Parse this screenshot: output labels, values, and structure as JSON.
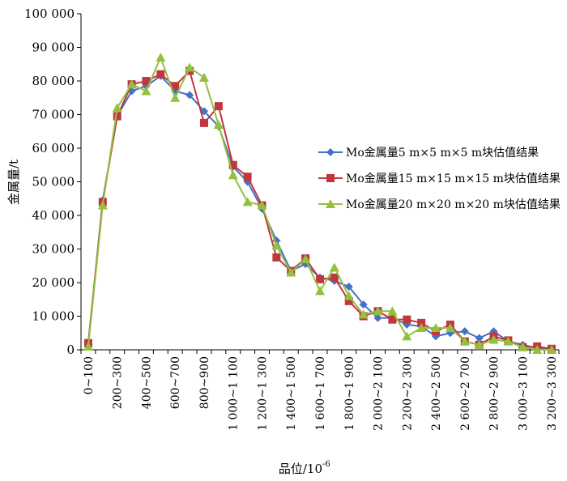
{
  "chart_data": {
    "type": "line",
    "title": "",
    "xlabel": "品位/10",
    "xlabel_superscript": "-6",
    "ylabel": "金属量/t",
    "ylim": [
      0,
      100000
    ],
    "ytick_values": [
      0,
      10000,
      20000,
      30000,
      40000,
      50000,
      60000,
      70000,
      80000,
      90000,
      100000
    ],
    "ytick_labels": [
      "0",
      "10 000",
      "20 000",
      "30 000",
      "40 000",
      "50 000",
      "60 000",
      "70 000",
      "80 000",
      "90 000",
      "100 000"
    ],
    "categories": [
      "0~100",
      "100~200",
      "200~300",
      "300~400",
      "400~500",
      "500~600",
      "600~700",
      "700~800",
      "800~900",
      "900~1 000",
      "1 000~1 100",
      "1 100~1 200",
      "1 200~1 300",
      "1 300~1 400",
      "1 400~1 500",
      "1 500~1 600",
      "1 600~1 700",
      "1 700~1 800",
      "1 800~1 900",
      "1 900~2 000",
      "2 000~2 100",
      "2 100~2 200",
      "2 200~2 300",
      "2 300~2 400",
      "2 400~2 500",
      "2 500~2 600",
      "2 600~2 700",
      "2 700~2 800",
      "2 800~2 900",
      "2 900~3 000",
      "3 000~3 100",
      "3 100~3 200",
      "3 200~3 300"
    ],
    "shown_tick_labels": [
      "0~100",
      "200~300",
      "400~500",
      "600~700",
      "800~900",
      "1 000~1 100",
      "1 200~1 300",
      "1 400~1 500",
      "1 600~1 700",
      "1 800~1 900",
      "2 000~2 100",
      "2 200~2 300",
      "2 400~2 500",
      "2 600~2 700",
      "2 800~2 900",
      "3 000~3 100",
      "3 200~3 300"
    ],
    "legend_position": "right",
    "series": [
      {
        "name": "Mo金属量5 m×5 m×5 m块估值结果",
        "color": "#4472C4",
        "marker": "diamond",
        "values": [
          1500,
          44500,
          69500,
          77000,
          78500,
          81500,
          77000,
          75800,
          71000,
          66500,
          54500,
          50000,
          42000,
          32500,
          23500,
          25500,
          21500,
          20500,
          18800,
          13500,
          9500,
          9500,
          7500,
          7000,
          4000,
          5000,
          5500,
          3500,
          5500,
          2500,
          1500,
          500,
          300
        ]
      },
      {
        "name": "Mo金属量15 m×15 m×15 m块估值结果",
        "color": "#C0373E",
        "marker": "square",
        "values": [
          2000,
          44000,
          69500,
          79000,
          80000,
          82000,
          78500,
          83000,
          67500,
          72500,
          55000,
          51500,
          43000,
          27500,
          23500,
          27200,
          21000,
          21500,
          14500,
          10000,
          11500,
          9000,
          9000,
          8000,
          5500,
          7500,
          2500,
          1500,
          4000,
          2800,
          800,
          1000,
          300
        ]
      },
      {
        "name": "Mo金属量20 m×20 m×20 m块估值结果",
        "color": "#92C13E",
        "marker": "triangle",
        "values": [
          1000,
          43000,
          72000,
          79000,
          77000,
          87000,
          75000,
          84000,
          81000,
          67000,
          52000,
          44000,
          43000,
          31000,
          23000,
          27000,
          17500,
          24500,
          16000,
          10500,
          11500,
          11500,
          4000,
          6500,
          6500,
          6500,
          2500,
          1500,
          3000,
          2500,
          800,
          0,
          0
        ]
      }
    ]
  }
}
